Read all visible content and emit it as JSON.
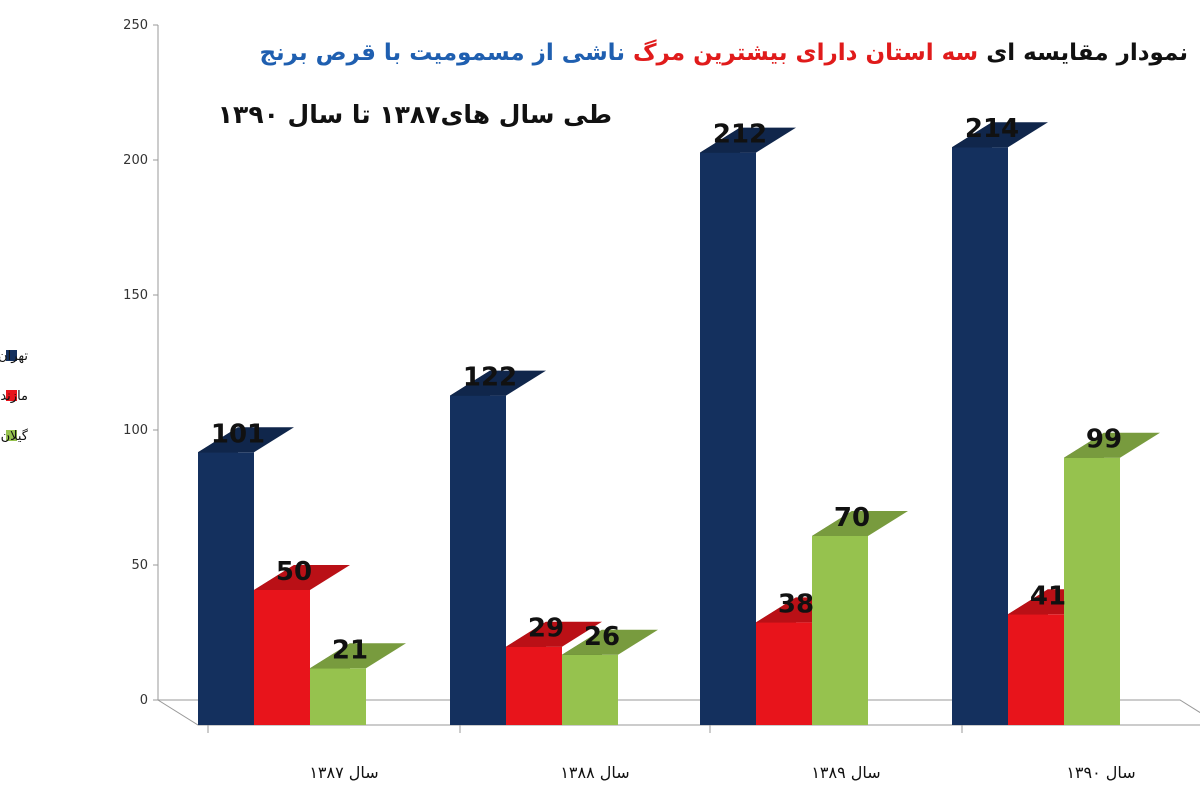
{
  "title": {
    "part1": "نمودار مقایسه ای ",
    "part2": "سه استان دارای بیشترین مرگ ",
    "part3": "ناشی از مسمومیت با قرص برنج",
    "color1": "#111111",
    "color2": "#e01b1b",
    "color3": "#1f5fb0"
  },
  "subtitle": "طی سال های۱۳۸۷ تا سال ۱۳۹۰",
  "chart_data": {
    "type": "bar",
    "categories": [
      "سال ۱۳۸۷",
      "سال ۱۳۸۸",
      "سال ۱۳۸۹",
      "سال ۱۳۹۰"
    ],
    "series": [
      {
        "name": "تهران",
        "values": [
          101,
          122,
          212,
          214
        ],
        "color": "#14305e"
      },
      {
        "name": "مازندران",
        "values": [
          50,
          29,
          38,
          41
        ],
        "color": "#e8141b"
      },
      {
        "name": "گیلان",
        "values": [
          21,
          26,
          70,
          99
        ],
        "color": "#96c24e"
      }
    ],
    "ylim": [
      0,
      250
    ],
    "yticks": [
      0,
      50,
      100,
      150,
      200,
      250
    ],
    "grid": false,
    "legend_position": "left",
    "bar_style": "3d"
  }
}
